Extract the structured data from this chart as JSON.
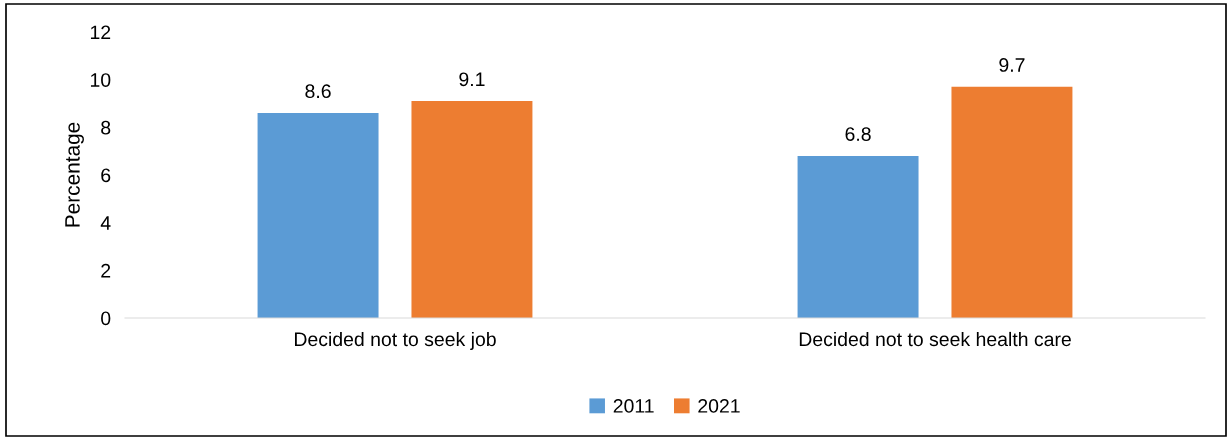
{
  "chart_data": {
    "type": "bar",
    "ylabel": "Percentage",
    "categories": [
      "Decided not to seek job",
      "Decided not to seek health care"
    ],
    "series": [
      {
        "name": "2011",
        "color": "#5b9bd5",
        "values": [
          8.6,
          6.8
        ]
      },
      {
        "name": "2021",
        "color": "#ed7d31",
        "values": [
          9.1,
          9.7
        ]
      }
    ],
    "ylim": [
      0,
      12
    ],
    "yticks": [
      0,
      2,
      4,
      6,
      8,
      10,
      12
    ],
    "grid": false,
    "legend": "bottom",
    "data_labels": true
  }
}
